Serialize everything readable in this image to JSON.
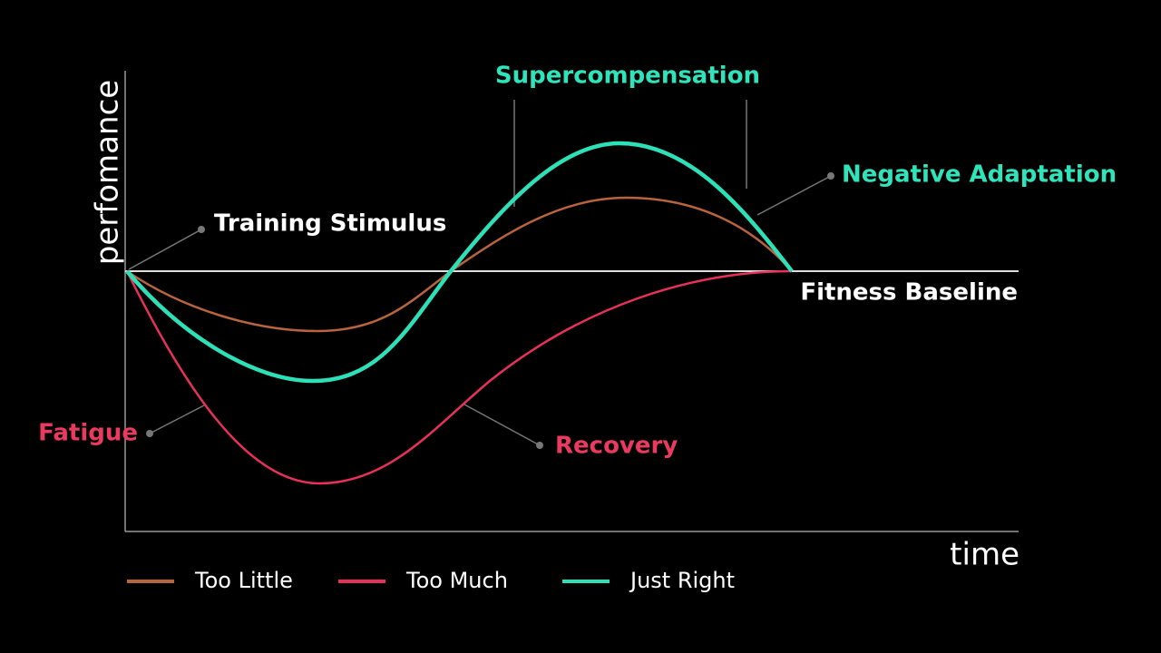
{
  "axes": {
    "y_label": "perfomance",
    "x_label": "time"
  },
  "baseline_label": "Fitness Baseline",
  "annotations": [
    {
      "text": "Supercompensation",
      "color": "#2fe3bb"
    },
    {
      "text": "Negative Adaptation",
      "color": "#2fe3bb"
    },
    {
      "text": "Training Stimulus",
      "color": "#ffffff"
    },
    {
      "text": "Fatigue",
      "color": "#ea3a5f"
    },
    {
      "text": "Recovery",
      "color": "#ea3a5f"
    }
  ],
  "legend": [
    {
      "name": "Too Little",
      "color": "#b8643c"
    },
    {
      "name": "Too Much",
      "color": "#e8315a"
    },
    {
      "name": "Just Right",
      "color": "#2ee0b8"
    }
  ]
}
